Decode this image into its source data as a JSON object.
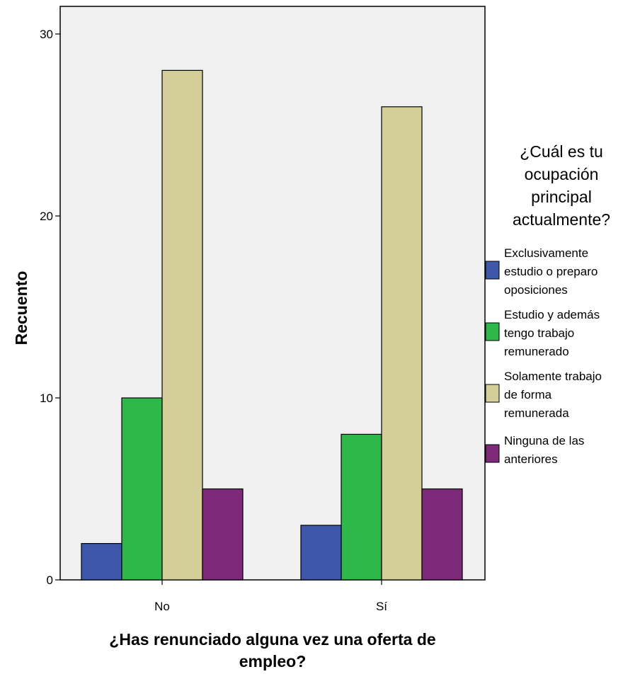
{
  "chart_data": {
    "type": "bar",
    "categories": [
      "No",
      "Sí"
    ],
    "series": [
      {
        "name": "Exclusivamente estudio o preparo oposiciones",
        "values": [
          2,
          3
        ],
        "color": "#3f57a8"
      },
      {
        "name": "Estudio y además tengo trabajo remunerado",
        "values": [
          10,
          8
        ],
        "color": "#2fb84a"
      },
      {
        "name": "Solamente trabajo de forma remunerada",
        "values": [
          28,
          26
        ],
        "color": "#d4cf9a"
      },
      {
        "name": "Ninguna de las anteriores",
        "values": [
          5,
          5
        ],
        "color": "#7d2a7a"
      }
    ],
    "xlabel": "¿Has renunciado alguna vez una oferta de empleo?",
    "ylabel": "Recuento",
    "ylim": [
      0,
      30
    ],
    "yticks": [
      0,
      10,
      20,
      30
    ],
    "grid": false,
    "plot_background": "#f0f0f0",
    "legend": {
      "title": "¿Cuál es tu ocupación principal actualmente?",
      "placement": "right",
      "entries": [
        "Exclusivamente estudio o preparo oposiciones",
        "Estudio y además tengo trabajo remunerado",
        "Solamente trabajo de forma remunerada",
        "Ninguna de las anteriores"
      ]
    }
  }
}
